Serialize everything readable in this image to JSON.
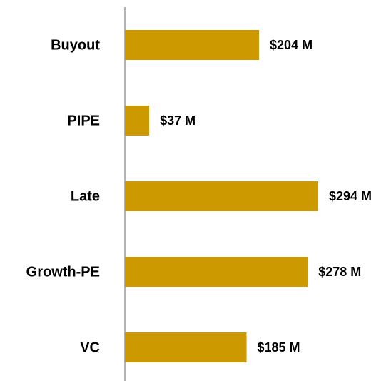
{
  "chart_data": {
    "type": "hbar",
    "categories": [
      "Buyout",
      "PIPE",
      "Late",
      "Growth-PE",
      "VC"
    ],
    "values": [
      204,
      37,
      294,
      278,
      185
    ],
    "value_labels": [
      "$204 M",
      "$37 M",
      "$294 M",
      "$278 M",
      "$185 M"
    ],
    "color": "#cc9900"
  }
}
